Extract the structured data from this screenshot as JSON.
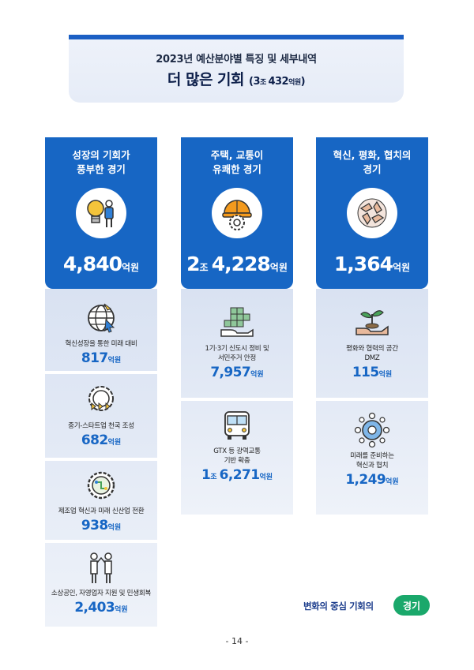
{
  "header": {
    "subtitle": "2023년 예산분야별 특징 및 세부내역",
    "title": "더 많은 기회",
    "amount_open": "(3",
    "amount_unit1": "조 ",
    "amount_num": "432",
    "amount_unit2": "억원",
    "amount_close": ")"
  },
  "columns": [
    {
      "title": "성장의 기회가\n풍부한 경기",
      "amount": "4,840",
      "unit": "억원",
      "icon": "lightbulb-person-icon",
      "items": [
        {
          "label": "혁신성장을 통한 미래 대비",
          "amount": "817",
          "unit": "억원",
          "icon": "globe-cursor-icon"
        },
        {
          "label": "중기-스타트업 천국 조성",
          "amount": "682",
          "unit": "억원",
          "icon": "gear-arrows-icon"
        },
        {
          "label": "제조업 혁신과 미래 신산업 전환",
          "amount": "938",
          "unit": "억원",
          "icon": "gear-circuit-icon"
        },
        {
          "label": "소상공인, 자영업자 지원 및 민생회복",
          "amount": "2,403",
          "unit": "억원",
          "icon": "people-handshake-icon"
        }
      ]
    },
    {
      "title": "주택, 교통이\n유쾌한 경기",
      "amount_prefix": "2",
      "amount_prefix_unit": "조 ",
      "amount": "4,228",
      "unit": "억원",
      "icon": "hardhat-gear-icon",
      "items": [
        {
          "label": "1기·3기 신도시 정비 및\n서민주거 안정",
          "amount": "7,957",
          "unit": "억원",
          "icon": "hand-buildings-icon"
        },
        {
          "label": "GTX 등 광역교통\n기반 확충",
          "amount_prefix": "1",
          "amount_prefix_unit": "조 ",
          "amount": "6,271",
          "unit": "억원",
          "icon": "bus-icon"
        }
      ]
    },
    {
      "title": "혁신, 평화, 협치의\n경기",
      "amount": "1,364",
      "unit": "억원",
      "icon": "joined-hands-icon",
      "items": [
        {
          "label": "평화와 협력의 공간\nDMZ",
          "amount": "115",
          "unit": "억원",
          "icon": "hand-sprout-icon"
        },
        {
          "label": "미래를 준비하는\n혁신과 협치",
          "amount": "1,249",
          "unit": "억원",
          "icon": "network-people-icon"
        }
      ]
    }
  ],
  "footer": {
    "slogan": "변화의 중심 기회의",
    "logo": "경기",
    "page": "- 14 -"
  }
}
